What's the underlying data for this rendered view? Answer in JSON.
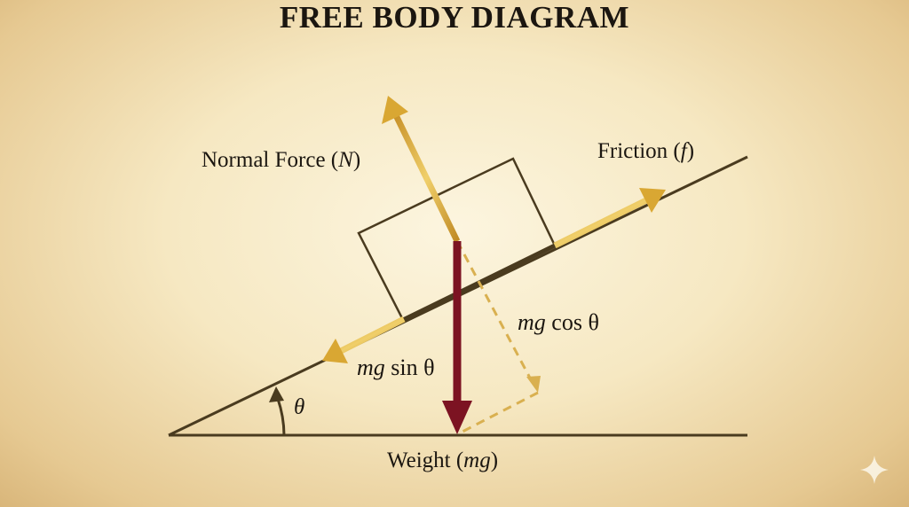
{
  "title": "FREE BODY DIAGRAM",
  "labels": {
    "normal_pre": "Normal Force (",
    "normal_sym": "N",
    "normal_post": ")",
    "friction_pre": "Friction (",
    "friction_sym": "f",
    "friction_post": ")",
    "cos_mg": "mg",
    "cos_rest": " cos θ",
    "sin_mg": "mg",
    "sin_rest": " sin θ",
    "theta": "θ",
    "weight_pre": "Weight (",
    "weight_sym": "mg",
    "weight_post": ")"
  },
  "colors": {
    "gold": "#d9a733",
    "weight": "#7c1322",
    "line": "#4a3b1f"
  },
  "icons": {
    "corner": "sparkle-icon"
  }
}
